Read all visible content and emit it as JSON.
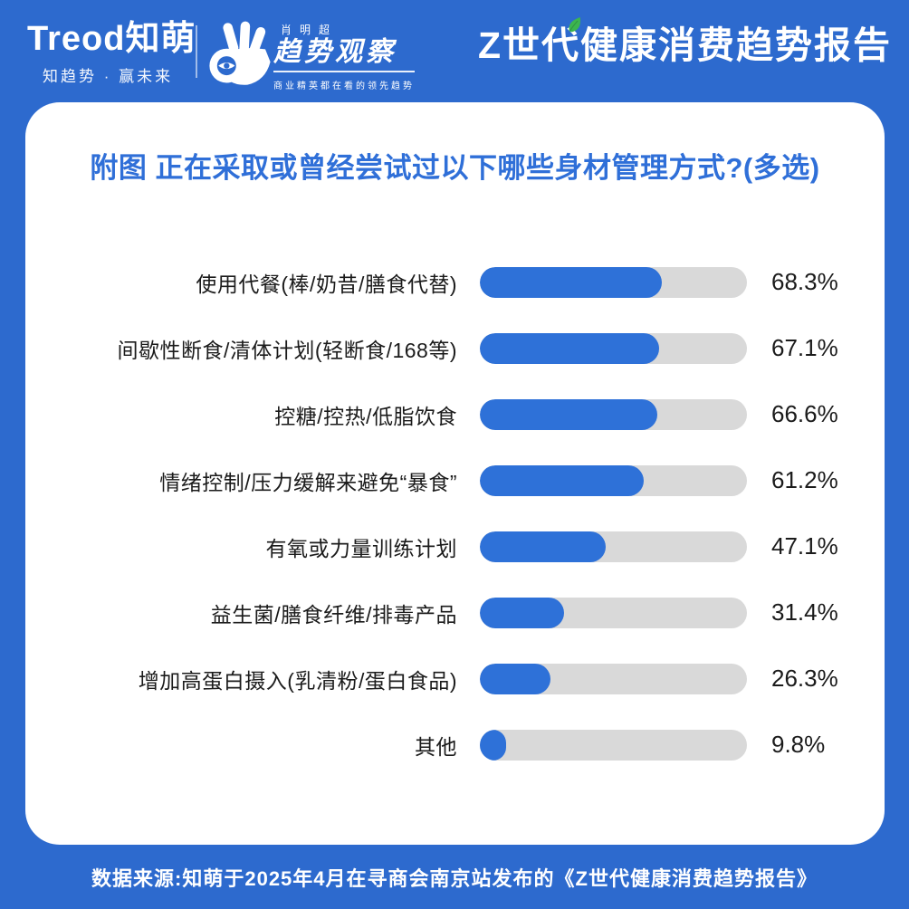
{
  "header": {
    "brand": {
      "logo_text": "Treod知萌",
      "tagline": "知趋势 · 赢未来"
    },
    "observer": {
      "name": "肖明超",
      "title": "趋势观察",
      "subtitle": "商业精英都在看的领先趋势"
    },
    "report_title": "Z世代健康消费趋势报告"
  },
  "card": {
    "title": "附图 正在采取或曾经尝试过以下哪些身材管理方式?(多选)"
  },
  "footer": {
    "source": "数据来源:知萌于2025年4月在寻商会南京站发布的《Z世代健康消费趋势报告》"
  },
  "colors": {
    "page_background": "#2d6ace",
    "bar_fill": "#2e71d8",
    "bar_track": "#d9d9d9",
    "title_blue": "#2f6fd8",
    "leaf_green": "#3cb54f",
    "card_white": "#ffffff"
  },
  "icons": {
    "ok_hand": "ok-hand-logo-icon",
    "leaf": "leaf-icon"
  },
  "chart_data": {
    "type": "bar",
    "orientation": "horizontal",
    "title": "附图 正在采取或曾经尝试过以下哪些身材管理方式?(多选)",
    "categories": [
      "使用代餐(棒/奶昔/膳食代替)",
      "间歇性断食/清体计划(轻断食/168等)",
      "控糖/控热/低脂饮食",
      "情绪控制/压力缓解来避免“暴食”",
      "有氧或力量训练计划",
      "益生菌/膳食纤维/排毒产品",
      "增加高蛋白摄入(乳清粉/蛋白食品)",
      "其他"
    ],
    "values": [
      68.3,
      67.1,
      66.6,
      61.2,
      47.1,
      31.4,
      26.3,
      9.8
    ],
    "value_labels": [
      "68.3%",
      "67.1%",
      "66.6%",
      "61.2%",
      "47.1%",
      "31.4%",
      "26.3%",
      "9.8%"
    ],
    "xlim": [
      0,
      100
    ],
    "grid": false,
    "legend": false
  }
}
